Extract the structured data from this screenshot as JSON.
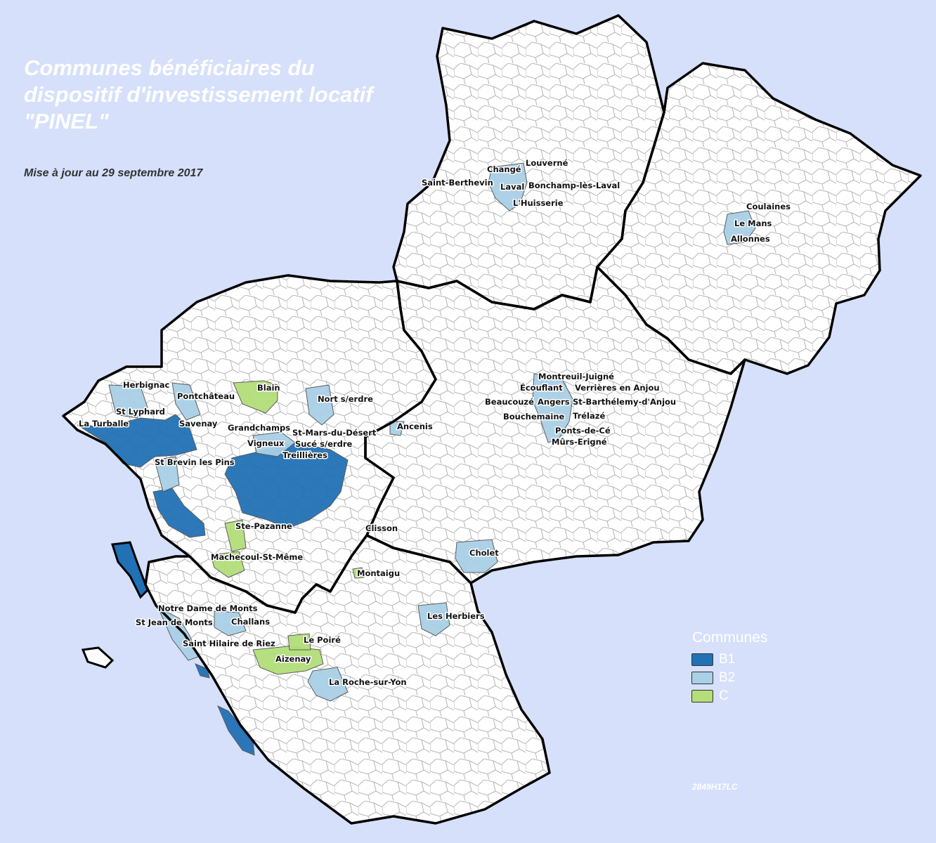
{
  "title": "Communes bénéficiaires du dispositif d'investissement locatif \"PINEL\"",
  "subtitle": "Mise à jour au 29 septembre 2017",
  "legend": {
    "title": "Communes",
    "items": [
      {
        "label": "B1",
        "color": "#2171b5"
      },
      {
        "label": "B2",
        "color": "#a9d0e6"
      },
      {
        "label": "C",
        "color": "#b3de7a"
      }
    ]
  },
  "reference_code": "2849H17LC",
  "colors": {
    "background": "#d6e0fb",
    "land": "#ffffff",
    "department_border": "#000000",
    "commune_border": "#aaaaaa"
  },
  "commune_labels": [
    "Louverné",
    "Changé",
    "Saint-Berthevin",
    "Laval",
    "Bonchamp-lès-Laval",
    "L'Huisserie",
    "Coulaines",
    "Le Mans",
    "Allonnes",
    "Montreuil-Juigné",
    "Écouflant",
    "Verrières en Anjou",
    "Beaucouzé",
    "Angers",
    "St-Barthélemy-d'Anjou",
    "Bouchemaine",
    "Trélazé",
    "Ponts-de-Cé",
    "Mûrs-Erigné",
    "Cholet",
    "Herbignac",
    "Pontchâteau",
    "Blain",
    "Nort s/erdre",
    "St Lyphard",
    "La Turballe",
    "Savenay",
    "Grandchamps",
    "St-Mars-du-Désert",
    "Ancenis",
    "Vigneux",
    "Sucé s/erdre",
    "Treillières",
    "St Brevin les Pins",
    "Ste-Pazanne",
    "Clisson",
    "Machecoul-St-Même",
    "Montaigu",
    "Notre Dame de Monts",
    "Challans",
    "St Jean de Monts",
    "Les Herbiers",
    "Saint Hilaire de Riez",
    "Le Poiré",
    "Aizenay",
    "La Roche-sur-Yon"
  ]
}
